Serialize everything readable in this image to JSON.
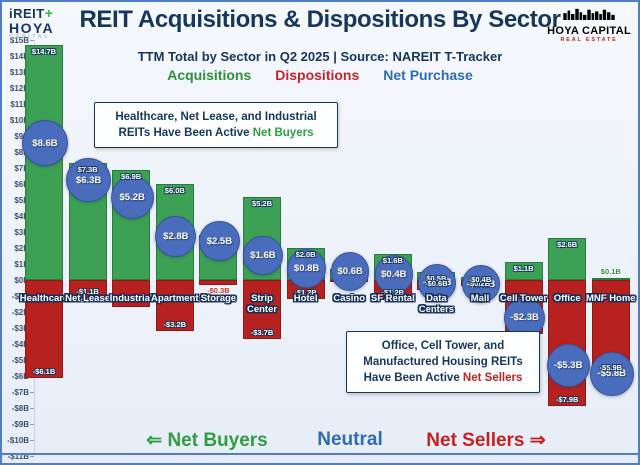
{
  "header": {
    "title": "REIT Acquisitions & Dispositions By Sector",
    "subtitle": "TTM Total by Sector in Q2 2025 |  Source: NAREIT T-Tracker",
    "legend": [
      {
        "label": "Acquisitions",
        "color": "#2f8f3c"
      },
      {
        "label": "Dispositions",
        "color": "#c0272d"
      },
      {
        "label": "Net Purchase",
        "color": "#2e6db4"
      }
    ],
    "logo_left": {
      "line1": "iREIT",
      "plus": "+",
      "line2": "HOYA",
      "line3": "CAPITAL"
    },
    "logo_right": {
      "line1": "HOYA CAPITAL",
      "line2": "REAL ESTATE"
    }
  },
  "annotations": {
    "buyers": {
      "text": "Healthcare, Net Lease, and Industrial REITs Have Been Active ",
      "highlight": "Net Buyers"
    },
    "sellers": {
      "text": "Office, Cell Tower, and Manufactured Housing REITs Have Been Active ",
      "highlight": "Net Sellers"
    }
  },
  "footer": {
    "left_arrow": "⇐",
    "net_buyers": "Net Buyers",
    "neutral": "Neutral",
    "net_sellers": "Net Sellers",
    "right_arrow": "⇒"
  },
  "colors": {
    "acquisitions_bar": "#3da155",
    "dispositions_bar": "#b7211f",
    "net_circle": "#4a6cbc",
    "title_navy": "#16365c",
    "frame_blue": "#4f7ec2"
  },
  "chart_data": {
    "type": "bar",
    "title": "REIT Acquisitions & Dispositions By Sector",
    "subtitle": "TTM Total by Sector in Q2 2025 | Source: NAREIT T-Tracker",
    "unit": "$B",
    "ylim": [
      -11,
      15
    ],
    "ytick_step": 1,
    "grid": false,
    "legend_position": "top",
    "categories": [
      "Healthcare",
      "Net Lease",
      "Industrial",
      "Apartment",
      "Storage",
      "Strip Center",
      "Hotel",
      "Casino",
      "SF Rental",
      "Data Centers",
      "Mall",
      "Cell Tower",
      "Office",
      "MNF Home"
    ],
    "series": [
      {
        "name": "Acquisitions",
        "color": "#3da155",
        "values": [
          14.7,
          7.3,
          6.9,
          6.0,
          2.8,
          5.2,
          2.0,
          0.7,
          1.6,
          0.5,
          0.2,
          1.1,
          2.6,
          0.1
        ]
      },
      {
        "name": "Dispositions",
        "color": "#b7211f",
        "values": [
          -6.1,
          -1.1,
          -1.7,
          -3.2,
          -0.3,
          -3.7,
          -1.2,
          -0.1,
          -1.2,
          -0.6,
          -0.4,
          -3.4,
          -7.9,
          -5.9
        ]
      },
      {
        "name": "Net Purchase",
        "color": "#4a6cbc",
        "values": [
          8.6,
          6.3,
          5.2,
          2.8,
          2.5,
          1.6,
          0.8,
          0.6,
          0.4,
          -0.1,
          -0.2,
          -2.3,
          -5.3,
          -5.8
        ]
      }
    ],
    "sectors": [
      {
        "label_lines": [
          "Healthcare"
        ],
        "acq": 14.7,
        "acq_label": "$14.7B",
        "disp": -6.1,
        "disp_label": "-$6.1B",
        "net": 8.6,
        "net_label": "$8.6B"
      },
      {
        "label_lines": [
          "Net Lease"
        ],
        "acq": 7.3,
        "acq_label": "$7.3B",
        "disp": -1.1,
        "disp_label": "-$1.1B",
        "net": 6.3,
        "net_label": "$6.3B"
      },
      {
        "label_lines": [
          "Industrial"
        ],
        "acq": 6.9,
        "acq_label": "$6.9B",
        "disp": -1.7,
        "disp_label": "",
        "net": 5.2,
        "net_label": "$5.2B"
      },
      {
        "label_lines": [
          "Apartment"
        ],
        "acq": 6.0,
        "acq_label": "$6.0B",
        "disp": -3.2,
        "disp_label": "-$3.2B",
        "net": 2.8,
        "net_label": "$2.8B"
      },
      {
        "label_lines": [
          "Storage"
        ],
        "acq": 2.8,
        "acq_label": "",
        "disp": -0.3,
        "disp_label": "-$0.3B",
        "disp_label_pos": "out",
        "net": 2.5,
        "net_label": "$2.5B"
      },
      {
        "label_lines": [
          "Strip",
          "Center"
        ],
        "acq": 5.2,
        "acq_label": "$5.2B",
        "disp": -3.7,
        "disp_label": "-$3.7B",
        "net": 1.6,
        "net_label": "$1.6B"
      },
      {
        "label_lines": [
          "Hotel"
        ],
        "acq": 2.0,
        "acq_label": "$2.0B",
        "disp": -1.2,
        "disp_label": "-$1.2B",
        "net": 0.8,
        "net_label": "$0.8B"
      },
      {
        "label_lines": [
          "Casino"
        ],
        "acq": 0.7,
        "acq_label": "",
        "disp": -0.1,
        "disp_label": "",
        "net": 0.6,
        "net_label": "$0.6B"
      },
      {
        "label_lines": [
          "SF Rental"
        ],
        "acq": 1.6,
        "acq_label": "$1.6B",
        "disp": -1.2,
        "disp_label": "-$1.2B",
        "net": 0.4,
        "net_label": "$0.4B"
      },
      {
        "label_lines": [
          "Data",
          "Centers"
        ],
        "acq": 0.5,
        "acq_label": "$0.5B",
        "disp": -0.6,
        "disp_label": "-$0.6B",
        "net": -0.1,
        "net_label": "-$0.1B"
      },
      {
        "label_lines": [
          "Mall"
        ],
        "acq": 0.2,
        "acq_label": "$0.2B",
        "disp": -0.4,
        "disp_label": "-$0.4B",
        "net": -0.2,
        "net_label": "-$0.2B"
      },
      {
        "label_lines": [
          "Cell Tower"
        ],
        "acq": 1.1,
        "acq_label": "$1.1B",
        "disp": -3.4,
        "disp_label": "",
        "net": -2.3,
        "net_label": "-$2.3B"
      },
      {
        "label_lines": [
          "Office"
        ],
        "acq": 2.6,
        "acq_label": "$2.6B",
        "disp": -7.9,
        "disp_label": "-$7.9B",
        "net": -5.3,
        "net_label": "-$5.3B"
      },
      {
        "label_lines": [
          "MNF Home"
        ],
        "acq": 0.1,
        "acq_label": "$0.1B",
        "acq_label_pos": "out",
        "disp": -5.9,
        "disp_label": "-$5.9B",
        "net": -5.8,
        "net_label": "-$5.8B"
      }
    ]
  }
}
